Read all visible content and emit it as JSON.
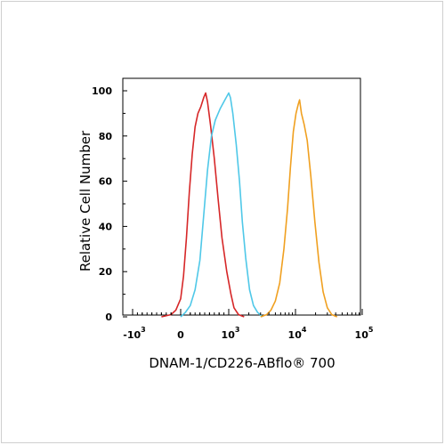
{
  "chart_data": {
    "type": "line",
    "title": "",
    "xlabel": "DNAM-1/CD226-ABflo® 700",
    "ylabel": "Relative Cell Number",
    "x_scale": "biexponential",
    "xlim": [
      -1500,
      100000
    ],
    "ylim": [
      0,
      100
    ],
    "y_ticks": [
      0,
      20,
      40,
      60,
      80,
      100
    ],
    "x_ticks": [
      {
        "value": -1000,
        "base": "-10",
        "exp": "3"
      },
      {
        "value": 0,
        "base": "0",
        "exp": ""
      },
      {
        "value": 1000,
        "base": "10",
        "exp": "3"
      },
      {
        "value": 10000,
        "base": "10",
        "exp": "4"
      },
      {
        "value": 100000,
        "base": "10",
        "exp": "5"
      }
    ],
    "grid": false,
    "series": [
      {
        "color": "#d62728",
        "points": [
          [
            -400,
            0
          ],
          [
            -200,
            1
          ],
          [
            -100,
            3
          ],
          [
            0,
            8
          ],
          [
            60,
            18
          ],
          [
            120,
            35
          ],
          [
            180,
            55
          ],
          [
            240,
            72
          ],
          [
            300,
            84
          ],
          [
            360,
            90
          ],
          [
            420,
            93
          ],
          [
            480,
            97
          ],
          [
            520,
            99
          ],
          [
            560,
            95
          ],
          [
            620,
            85
          ],
          [
            700,
            70
          ],
          [
            780,
            52
          ],
          [
            860,
            35
          ],
          [
            960,
            20
          ],
          [
            1080,
            10
          ],
          [
            1200,
            4
          ],
          [
            1400,
            1
          ],
          [
            1700,
            0
          ]
        ]
      },
      {
        "color": "#4fc8e8",
        "points": [
          [
            0,
            0
          ],
          [
            100,
            2
          ],
          [
            200,
            5
          ],
          [
            300,
            12
          ],
          [
            400,
            25
          ],
          [
            480,
            45
          ],
          [
            560,
            65
          ],
          [
            640,
            80
          ],
          [
            720,
            87
          ],
          [
            820,
            92
          ],
          [
            920,
            96
          ],
          [
            1000,
            99
          ],
          [
            1060,
            97
          ],
          [
            1150,
            90
          ],
          [
            1300,
            76
          ],
          [
            1450,
            60
          ],
          [
            1600,
            42
          ],
          [
            1800,
            26
          ],
          [
            2050,
            12
          ],
          [
            2350,
            5
          ],
          [
            2700,
            2
          ],
          [
            3200,
            0
          ]
        ]
      },
      {
        "color": "#f0a020",
        "points": [
          [
            3000,
            0
          ],
          [
            3700,
            1
          ],
          [
            4300,
            3
          ],
          [
            5000,
            7
          ],
          [
            5800,
            15
          ],
          [
            6700,
            30
          ],
          [
            7600,
            48
          ],
          [
            8400,
            66
          ],
          [
            9300,
            82
          ],
          [
            10200,
            90
          ],
          [
            11000,
            94
          ],
          [
            11500,
            96
          ],
          [
            12300,
            90
          ],
          [
            13500,
            85
          ],
          [
            15000,
            78
          ],
          [
            17000,
            62
          ],
          [
            19500,
            42
          ],
          [
            22500,
            24
          ],
          [
            26000,
            11
          ],
          [
            30000,
            4
          ],
          [
            35000,
            1
          ],
          [
            42000,
            0
          ]
        ]
      }
    ]
  }
}
